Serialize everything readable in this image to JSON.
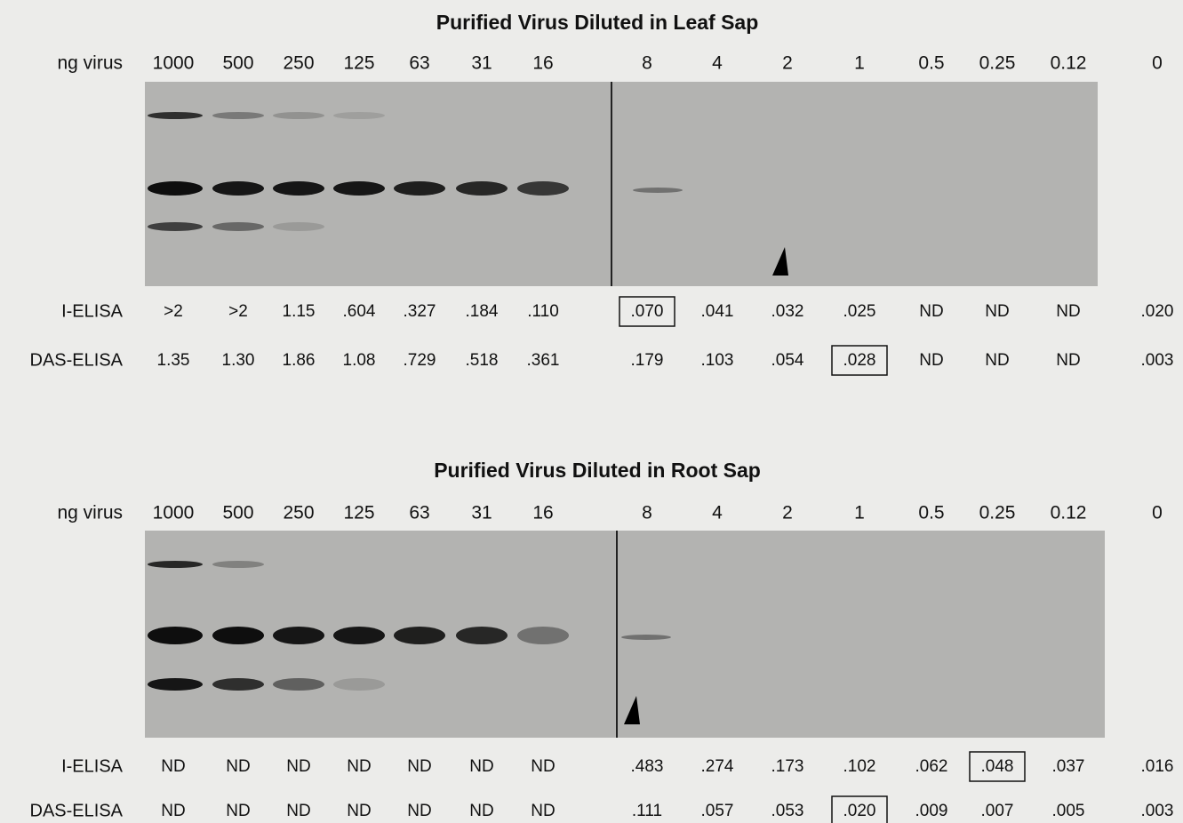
{
  "panels": [
    {
      "title": "Purified Virus Diluted in Leaf Sap",
      "lane_label": "ng virus",
      "lanes": [
        "1000",
        "500",
        "250",
        "125",
        "63",
        "31",
        "16",
        "8",
        "4",
        "2",
        "1",
        "0.5",
        "0.25",
        "0.12",
        "0"
      ],
      "rows": [
        {
          "label": "I-ELISA",
          "cells": [
            ">2",
            ">2",
            "1.15",
            ".604",
            ".327",
            ".184",
            ".110",
            ".070",
            ".041",
            ".032",
            ".025",
            "ND",
            "ND",
            "ND",
            ".020"
          ],
          "boxed_column": 7
        },
        {
          "label": "DAS-ELISA",
          "cells": [
            "1.35",
            "1.30",
            "1.86",
            "1.08",
            ".729",
            ".518",
            ".361",
            ".179",
            ".103",
            ".054",
            ".028",
            "ND",
            "ND",
            "ND",
            ".003"
          ],
          "boxed_column": 10
        }
      ]
    },
    {
      "title": "Purified Virus Diluted in Root Sap",
      "lane_label": "ng virus",
      "lanes": [
        "1000",
        "500",
        "250",
        "125",
        "63",
        "31",
        "16",
        "8",
        "4",
        "2",
        "1",
        "0.5",
        "0.25",
        "0.12",
        "0"
      ],
      "rows": [
        {
          "label": "I-ELISA",
          "cells": [
            "ND",
            "ND",
            "ND",
            "ND",
            "ND",
            "ND",
            "ND",
            ".483",
            ".274",
            ".173",
            ".102",
            ".062",
            ".048",
            ".037",
            ".016"
          ],
          "boxed_column": 12
        },
        {
          "label": "DAS-ELISA",
          "cells": [
            "ND",
            "ND",
            "ND",
            "ND",
            "ND",
            "ND",
            "ND",
            ".111",
            ".057",
            ".053",
            ".020",
            ".009",
            ".007",
            ".005",
            ".003"
          ],
          "boxed_column": 10
        }
      ]
    }
  ]
}
